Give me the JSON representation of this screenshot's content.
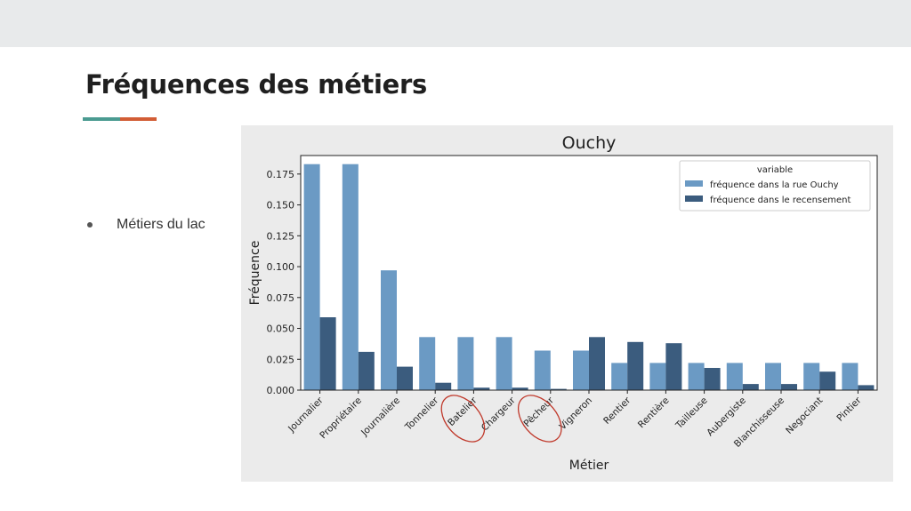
{
  "slide": {
    "title": "Fréquences des métiers",
    "bullets": [
      "Métiers du lac"
    ]
  },
  "colors": {
    "accent_teal": "#4a9b91",
    "accent_orange": "#d25d35",
    "series_light": "#6b9ac4",
    "series_dark": "#3b5c7e",
    "circle_annotation": "#c0392b"
  },
  "chart_data": {
    "type": "bar",
    "title": "Ouchy",
    "xlabel": "Métier",
    "ylabel": "Fréquence",
    "ylim": [
      0,
      0.19
    ],
    "yticks": [
      0.0,
      0.025,
      0.05,
      0.075,
      0.1,
      0.125,
      0.15,
      0.175
    ],
    "ytick_labels": [
      "0.000",
      "0.025",
      "0.050",
      "0.075",
      "0.100",
      "0.125",
      "0.150",
      "0.175"
    ],
    "grid": false,
    "legend": {
      "title": "variable",
      "placement": "top-right"
    },
    "categories": [
      "Journalier",
      "Propriétaire",
      "Journalière",
      "Tonnelier",
      "Batelier",
      "Chargeur",
      "Pêcheur",
      "Vigneron",
      "Rentier",
      "Rentière",
      "Tailleuse",
      "Aubergiste",
      "Blanchisseuse",
      "Negociant",
      "Pintier"
    ],
    "circled_categories": [
      "Batelier",
      "Pêcheur"
    ],
    "series": [
      {
        "name": "fréquence dans la rue Ouchy",
        "color": "#6b9ac4",
        "values": [
          0.183,
          0.183,
          0.097,
          0.043,
          0.043,
          0.043,
          0.032,
          0.032,
          0.022,
          0.022,
          0.022,
          0.022,
          0.022,
          0.022,
          0.022
        ]
      },
      {
        "name": "fréquence dans le recensement",
        "color": "#3b5c7e",
        "values": [
          0.059,
          0.031,
          0.019,
          0.006,
          0.002,
          0.002,
          0.001,
          0.043,
          0.039,
          0.038,
          0.018,
          0.005,
          0.005,
          0.015,
          0.004
        ]
      }
    ]
  }
}
